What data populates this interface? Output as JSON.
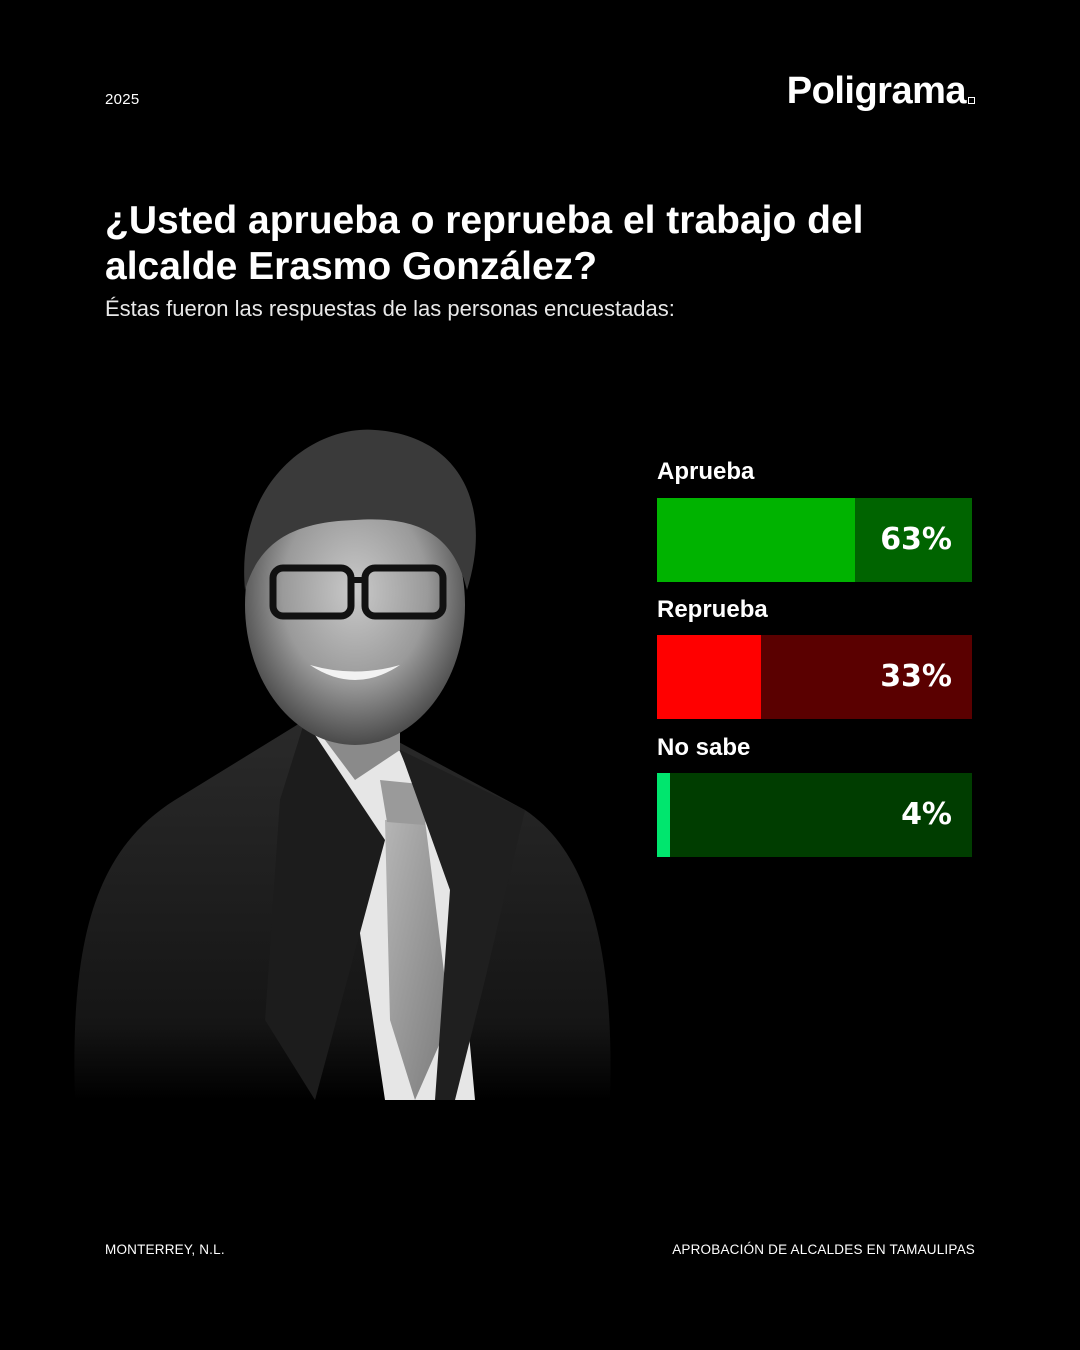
{
  "header": {
    "year": "2025",
    "brand": "Poligrama"
  },
  "title": "¿Usted aprueba o reprueba el trabajo del alcalde Erasmo González?",
  "subtitle": "Éstas fueron las respuestas de las personas encuestadas:",
  "footer": {
    "left": "MONTERREY, N.L.",
    "right": "APROBACIÓN DE ALCALDES EN TAMAULIPAS"
  },
  "chart_data": {
    "type": "bar",
    "orientation": "horizontal",
    "categories": [
      "Aprueba",
      "Reprueba",
      "No sabe"
    ],
    "values": [
      63,
      33,
      4
    ],
    "value_labels": [
      "63%",
      "33%",
      "4%"
    ],
    "unit": "%",
    "xlim": [
      0,
      100
    ],
    "fill_colors": [
      "#00b300",
      "#ff0000",
      "#00e66e"
    ],
    "track_colors": [
      "#006400",
      "#5a0000",
      "#003d00"
    ]
  }
}
